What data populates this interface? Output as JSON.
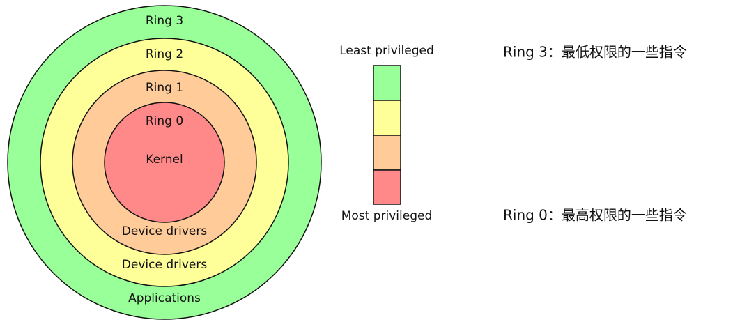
{
  "rings": [
    {
      "name": "Ring 3",
      "label": "Applications"
    },
    {
      "name": "Ring 2",
      "label": "Device drivers"
    },
    {
      "name": "Ring 1",
      "label": "Device drivers"
    },
    {
      "name": "Ring 0",
      "label": "Kernel"
    }
  ],
  "legend": {
    "top": "Least privileged",
    "bottom": "Most privileged"
  },
  "notes": [
    "Ring 3：最低权限的一些指令",
    "Ring 0：最高权限的一些指令"
  ]
}
